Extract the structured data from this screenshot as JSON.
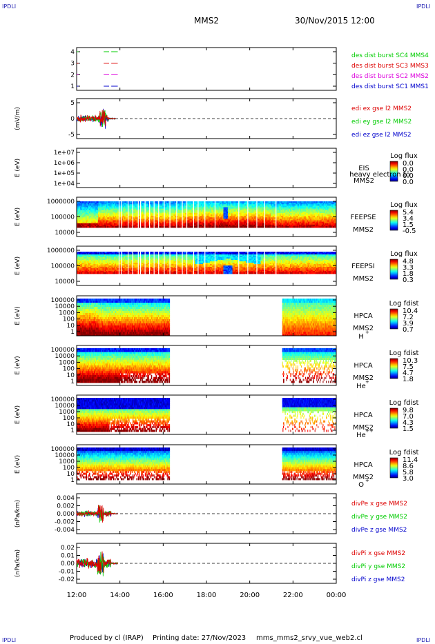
{
  "header": {
    "corner_label": "IPDLI",
    "spacecraft": "MMS2",
    "datetime": "30/Nov/2015 12:00"
  },
  "footer": {
    "producer": "Produced by cl (IRAP)",
    "printing_date": "Printing date: 27/Nov/2023",
    "filename": "mms_mms2_srvy_vue_web2.cl"
  },
  "time_axis": {
    "ticks": [
      "12:00",
      "14:00",
      "16:00",
      "18:00",
      "20:00",
      "22:00",
      "00:00"
    ],
    "start_hour": 12,
    "end_hour": 24
  },
  "colors": {
    "red": "#dd0000",
    "green": "#00cc00",
    "blue": "#0000cc",
    "magenta": "#dd00dd"
  },
  "chart_data": [
    {
      "type": "line",
      "panel": "burst",
      "y_ticks": [
        "4",
        "3",
        "2",
        "1"
      ],
      "series": [
        {
          "name": "des dist burst SC1 MMS1",
          "color": "#0000cc",
          "level": 1,
          "segments": [
            [
              12.0,
              12.05
            ],
            [
              13.25,
              13.5
            ],
            [
              13.6,
              13.9
            ]
          ]
        },
        {
          "name": "des dist burst SC2 MMS2",
          "color": "#dd00dd",
          "level": 2,
          "segments": [
            [
              12.0,
              12.05
            ],
            [
              13.25,
              13.5
            ],
            [
              13.6,
              13.9
            ]
          ]
        },
        {
          "name": "des dist burst SC3 MMS3",
          "color": "#dd0000",
          "level": 3,
          "segments": [
            [
              12.0,
              12.05
            ],
            [
              13.25,
              13.5
            ],
            [
              13.6,
              13.9
            ]
          ]
        },
        {
          "name": "des dist burst SC4 MMS4",
          "color": "#00cc00",
          "level": 4,
          "segments": [
            [
              12.0,
              12.05
            ],
            [
              13.25,
              13.5
            ],
            [
              13.6,
              13.9
            ]
          ]
        }
      ]
    },
    {
      "type": "line",
      "panel": "edi",
      "ylabel": "(mV/m)",
      "y_ticks": [
        "5",
        "0",
        "-5"
      ],
      "ylim": [
        -8,
        7
      ],
      "series": [
        {
          "name": "edi ex gse l2 MMS2",
          "color": "#dd0000"
        },
        {
          "name": "edi ey gse l2 MMS2",
          "color": "#00cc00"
        },
        {
          "name": "edi ez gse l2 MMS2",
          "color": "#0000cc"
        }
      ],
      "data_range_hours": [
        12.0,
        13.8
      ]
    },
    {
      "type": "heatmap",
      "panel": "EIS",
      "ylabel": "E (eV)",
      "y_ticks": [
        "1e+07",
        "1e+06",
        "1e+05",
        "1e+04"
      ],
      "instrument": "EIS",
      "spacecraft": "MMS2",
      "overlay_text": "heavy electron to",
      "colorbar": {
        "title": "Log flux",
        "ticks": [
          "0.0",
          "0.0",
          "0.0",
          "0.0"
        ]
      },
      "data_range_hours": []
    },
    {
      "type": "heatmap",
      "panel": "FEEPSE",
      "ylabel": "E (eV)",
      "y_ticks": [
        "1000000",
        "100000",
        "10000"
      ],
      "instrument": "FEEPSE",
      "spacecraft": "MMS2",
      "colorbar": {
        "title": "Log flux",
        "ticks": [
          "5.4",
          "3.4",
          "1.5",
          "-0.5"
        ]
      },
      "data_range_hours": [
        12.0,
        24.0
      ]
    },
    {
      "type": "heatmap",
      "panel": "FEEPSI",
      "ylabel": "E (eV)",
      "y_ticks": [
        "1000000",
        "100000",
        "10000"
      ],
      "instrument": "FEEPSI",
      "spacecraft": "MMS2",
      "colorbar": {
        "title": "Log flux",
        "ticks": [
          "4.8",
          "3.3",
          "1.8",
          "0.3"
        ]
      },
      "data_range_hours": [
        12.0,
        24.0
      ]
    },
    {
      "type": "heatmap",
      "panel": "HPCA-H",
      "ylabel": "E (eV)",
      "y_ticks": [
        "100000",
        "10000",
        "1000",
        "100",
        "10",
        "1"
      ],
      "instrument": "HPCA",
      "spacecraft": "MMS2",
      "species": "H",
      "species_charge": "+",
      "colorbar": {
        "title": "Log fdist",
        "ticks": [
          "10.4",
          "7.2",
          "3.9",
          "0.7"
        ]
      },
      "data_range_hours": [
        12.0,
        16.3,
        21.5,
        24.0
      ]
    },
    {
      "type": "heatmap",
      "panel": "HPCA-He",
      "ylabel": "E (eV)",
      "y_ticks": [
        "100000",
        "10000",
        "1000",
        "100",
        "10",
        "1"
      ],
      "instrument": "HPCA",
      "spacecraft": "MMS2",
      "species": "He",
      "species_charge": "+",
      "colorbar": {
        "title": "Log fdist",
        "ticks": [
          "10.3",
          "7.5",
          "4.7",
          "1.8"
        ]
      },
      "data_range_hours": [
        12.0,
        16.3,
        21.5,
        24.0
      ]
    },
    {
      "type": "heatmap",
      "panel": "HPCA-He2",
      "ylabel": "E (eV)",
      "y_ticks": [
        "100000",
        "10000",
        "1000",
        "100",
        "10",
        "1"
      ],
      "instrument": "HPCA",
      "spacecraft": "MMS2",
      "species": "He",
      "species_charge": "++",
      "colorbar": {
        "title": "Log fdist",
        "ticks": [
          "9.8",
          "7.0",
          "4.3",
          "1.5"
        ]
      },
      "data_range_hours": [
        12.0,
        16.3,
        21.5,
        24.0
      ]
    },
    {
      "type": "heatmap",
      "panel": "HPCA-O",
      "ylabel": "E (eV)",
      "y_ticks": [
        "100000",
        "10000",
        "1000",
        "100",
        "10",
        "1"
      ],
      "instrument": "HPCA",
      "spacecraft": "MMS2",
      "species": "O",
      "species_charge": "+",
      "colorbar": {
        "title": "Log fdist",
        "ticks": [
          "11.4",
          "8.6",
          "5.8",
          "3.0"
        ]
      },
      "data_range_hours": [
        12.0,
        16.3,
        21.5,
        24.0
      ]
    },
    {
      "type": "line",
      "panel": "divPe",
      "ylabel": "(nPa/km)",
      "y_ticks": [
        "0.004",
        "0.002",
        "0.000",
        "-0.002",
        "-0.004"
      ],
      "ylim": [
        -0.005,
        0.005
      ],
      "series": [
        {
          "name": "divPe x gse MMS2",
          "color": "#dd0000"
        },
        {
          "name": "divPe y gse MMS2",
          "color": "#00cc00"
        },
        {
          "name": "divPe z gse MMS2",
          "color": "#0000cc"
        }
      ],
      "data_range_hours": [
        12.0,
        13.9
      ]
    },
    {
      "type": "line",
      "panel": "divPi",
      "ylabel": "(nPa/km)",
      "y_ticks": [
        "0.02",
        "0.01",
        "0.00",
        "-0.01",
        "-0.02"
      ],
      "ylim": [
        -0.025,
        0.025
      ],
      "series": [
        {
          "name": "divPi x gse MMS2",
          "color": "#dd0000"
        },
        {
          "name": "divPi y gse MMS2",
          "color": "#00cc00"
        },
        {
          "name": "divPi z gse MMS2",
          "color": "#0000cc"
        }
      ],
      "data_range_hours": [
        12.0,
        13.9
      ]
    }
  ]
}
